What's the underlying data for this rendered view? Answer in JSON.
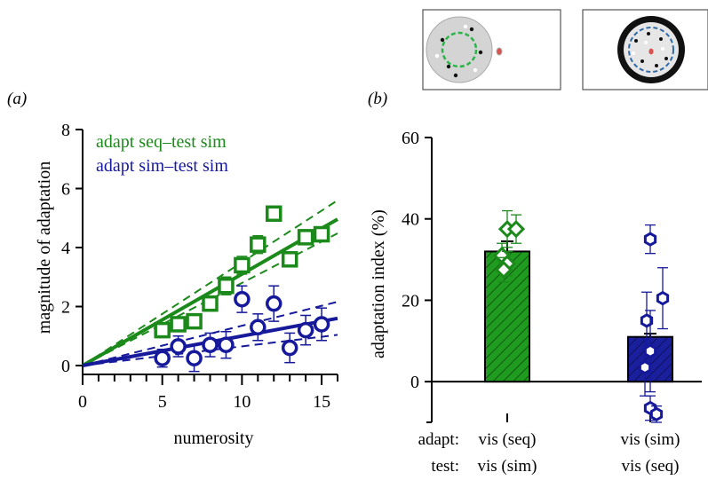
{
  "panel_labels": {
    "a": "(a)",
    "b": "(b)"
  },
  "colors": {
    "green": "#1b8a1b",
    "blue": "#15199a",
    "green_fill": "#1f9b1f",
    "blue_fill": "#1a1f9e",
    "schematic_green": "#2db34a",
    "schematic_blue": "#2f6aa8",
    "schematic_red": "#d9534f"
  },
  "schematics": [
    {
      "name": "sequential-stimulus-icon",
      "ring_style": "green-dashed-circle-on-grey-disc"
    },
    {
      "name": "simultaneous-stimulus-icon",
      "ring_style": "blue-dashed-circle-in-black-ring"
    }
  ],
  "chart_data": [
    {
      "type": "scatter",
      "panel": "a",
      "xlabel": "numerosity",
      "ylabel": "magnitude of adaptation",
      "xlim": [
        0,
        16
      ],
      "ylim": [
        0,
        8
      ],
      "xticks": [
        0,
        5,
        10,
        15
      ],
      "yticks": [
        0,
        2,
        4,
        6,
        8
      ],
      "grid": false,
      "legend_placement": "top-left",
      "series": [
        {
          "name": "adapt seq–test sim",
          "color": "#1b8a1b",
          "marker": "square",
          "x": [
            5,
            6,
            7,
            8,
            9,
            10,
            11,
            12,
            13,
            14,
            15
          ],
          "y": [
            1.2,
            1.4,
            1.5,
            2.1,
            2.7,
            3.4,
            4.1,
            5.15,
            3.6,
            4.35,
            4.45
          ],
          "yerr": [
            0.25,
            0.2,
            0.2,
            0.25,
            0.3,
            0.3,
            0.3,
            0.25,
            0.25,
            0.25,
            0.25
          ],
          "fit_slope": 0.31,
          "fit_ci_slopes": [
            0.28,
            0.35
          ]
        },
        {
          "name": "adapt sim–test sim",
          "color": "#15199a",
          "marker": "circle",
          "x": [
            5,
            6,
            7,
            8,
            9,
            10,
            11,
            12,
            13,
            14,
            15
          ],
          "y": [
            0.25,
            0.65,
            0.25,
            0.7,
            0.7,
            2.25,
            1.3,
            2.1,
            0.6,
            1.2,
            1.4
          ],
          "yerr": [
            0.3,
            0.35,
            0.45,
            0.4,
            0.45,
            0.45,
            0.45,
            0.6,
            0.5,
            0.5,
            0.55
          ],
          "fit_slope": 0.1,
          "fit_ci_slopes": [
            0.065,
            0.135
          ]
        }
      ]
    },
    {
      "type": "bar",
      "panel": "b",
      "ylabel": "adaptation index (%)",
      "ylim": [
        -10,
        60
      ],
      "yticks": [
        0,
        20,
        40,
        60
      ],
      "grid": false,
      "row_labels": [
        "adapt:",
        "test:"
      ],
      "categories": [
        {
          "adapt": "vis (seq)",
          "test": "vis (sim)"
        },
        {
          "adapt": "vis (sim)",
          "test": "vis (seq)"
        }
      ],
      "values": [
        32,
        11
      ],
      "sem": [
        2.5,
        0.8
      ],
      "series": [
        {
          "marker": "diamond",
          "color": "#1b8a1b",
          "points": [
            {
              "y": 37.5,
              "err": 4.5
            },
            {
              "y": 37.5,
              "err": 3.5
            },
            {
              "y": 31,
              "err": 3
            },
            {
              "y": 29,
              "err": 3
            },
            {
              "y": 27.5,
              "err": 3
            }
          ]
        },
        {
          "marker": "hexagon",
          "color": "#15199a",
          "points": [
            {
              "y": 35,
              "err": 3.5
            },
            {
              "y": 20.5,
              "err": 7.5
            },
            {
              "y": 15,
              "err": 7
            },
            {
              "y": 7.5,
              "err": 10
            },
            {
              "y": 3.5,
              "err": 7
            },
            {
              "y": -6.5,
              "err": 3
            },
            {
              "y": -8,
              "err": 2
            }
          ]
        }
      ]
    }
  ]
}
